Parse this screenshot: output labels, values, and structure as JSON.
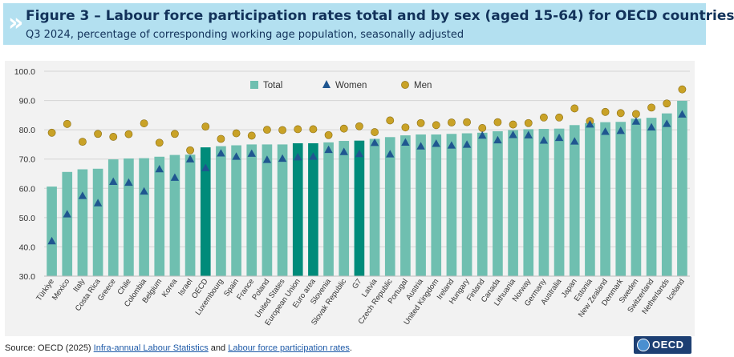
{
  "header": {
    "title": "Figure 3 – Labour force participation rates total and by sex (aged 15-64) for OECD countries",
    "subtitle": "Q3 2024, percentage of corresponding working age population, seasonally adjusted",
    "chevron": "»"
  },
  "colors": {
    "header_bg": "#b3e0f0",
    "bar": "#6fbfb0",
    "bar_highlight": "#008b7a",
    "women": "#1f5690",
    "men": "#c9a227"
  },
  "chart_data": {
    "type": "bar",
    "title": "",
    "xlabel": "",
    "ylabel": "",
    "ylim": [
      30,
      100
    ],
    "yticks": [
      "30.0",
      "40.0",
      "50.0",
      "60.0",
      "70.0",
      "80.0",
      "90.0",
      "100.0"
    ],
    "legend": {
      "placement": "top-center",
      "items": [
        "Total",
        "Women",
        "Men"
      ]
    },
    "highlighted": [
      "OECD",
      "European Union",
      "Euro area",
      "G7"
    ],
    "categories": [
      "Türkiye",
      "Mexico",
      "Italy",
      "Costa Rica",
      "Greece",
      "Chile",
      "Colombia",
      "Belgium",
      "Korea",
      "Israel",
      "OECD",
      "Luxembourg",
      "Spain",
      "France",
      "Poland",
      "United States",
      "European Union",
      "Euro area",
      "Slovenia",
      "Slovak Republic",
      "G7",
      "Latvia",
      "Czech Republic",
      "Portugal",
      "Austria",
      "United Kingdom",
      "Ireland",
      "Hungary",
      "Finland",
      "Canada",
      "Lithuania",
      "Norway",
      "Germany",
      "Australia",
      "Japan",
      "Estonia",
      "New Zealand",
      "Denmark",
      "Sweden",
      "Switzerland",
      "Netherlands",
      "Iceland"
    ],
    "series": [
      {
        "name": "Total",
        "kind": "bar",
        "values": [
          60.6,
          65.6,
          66.5,
          66.7,
          69.9,
          70.2,
          70.3,
          70.8,
          71.4,
          71.5,
          74.0,
          74.4,
          74.7,
          75.0,
          75.0,
          75.0,
          75.4,
          75.4,
          75.7,
          76.2,
          76.3,
          76.9,
          77.5,
          78.1,
          78.4,
          78.4,
          78.6,
          78.8,
          79.0,
          79.5,
          79.9,
          80.2,
          80.3,
          80.4,
          81.6,
          82.3,
          82.6,
          82.7,
          83.8,
          84.1,
          85.6,
          89.9
        ]
      },
      {
        "name": "Women",
        "kind": "triangle",
        "values": [
          42.0,
          51.2,
          57.5,
          55.0,
          62.3,
          62.0,
          59.0,
          66.6,
          63.7,
          70.0,
          67.0,
          72.0,
          70.9,
          71.9,
          69.8,
          70.2,
          70.7,
          70.9,
          73.2,
          72.5,
          71.8,
          75.6,
          71.7,
          75.7,
          74.4,
          75.3,
          74.7,
          75.0,
          78.1,
          76.5,
          78.3,
          78.2,
          76.4,
          77.3,
          76.1,
          81.9,
          79.4,
          79.7,
          82.9,
          80.9,
          82.1,
          85.3
        ]
      },
      {
        "name": "Men",
        "kind": "circle",
        "values": [
          79.0,
          82.0,
          75.9,
          78.6,
          77.6,
          78.5,
          82.2,
          75.6,
          78.6,
          73.0,
          81.1,
          76.9,
          78.8,
          78.0,
          80.0,
          79.9,
          80.2,
          80.2,
          78.2,
          80.4,
          81.2,
          79.2,
          83.2,
          80.8,
          82.3,
          81.6,
          82.5,
          82.6,
          80.6,
          82.6,
          81.8,
          82.3,
          84.2,
          84.2,
          87.3,
          83.0,
          86.1,
          85.7,
          85.4,
          87.6,
          89.0,
          93.8
        ]
      }
    ]
  },
  "footer": {
    "prefix": "Source: OECD (2025) ",
    "link1": "Infra-annual Labour Statistics",
    "and": " and ",
    "link2": "Labour force participation rates",
    "suffix": "."
  },
  "logo": {
    "text": "OECD"
  }
}
